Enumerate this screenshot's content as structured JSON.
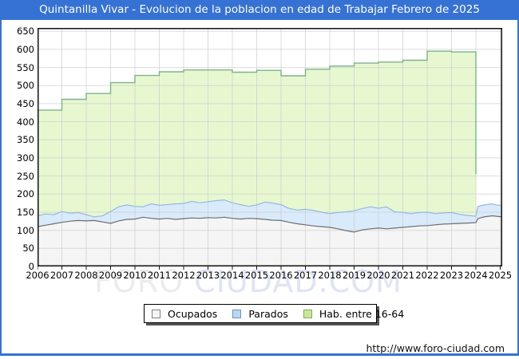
{
  "title": "Quintanilla Vivar - Evolucion de la poblacion en edad de Trabajar Febrero de 2025",
  "watermark": {
    "part1": "FORO ",
    "part2": "CIUDAD.COM"
  },
  "footer": {
    "url": "http://www.foro-ciudad.com"
  },
  "colors": {
    "titlebar_bg": "#3672d4",
    "frame": "#3672d4",
    "grid": "#c9c9c9",
    "plot_border": "#111111",
    "plot_bg": "#ffffff"
  },
  "legend": {
    "items": [
      {
        "label": "Ocupados",
        "fill": "#f5f5f5",
        "border": "#808080"
      },
      {
        "label": "Parados",
        "fill": "#b9d7f2",
        "border": "#7193b5"
      },
      {
        "label": "Hab. entre 16-64",
        "fill": "#c8e893",
        "border": "#84a85c"
      }
    ]
  },
  "chart_data": {
    "type": "area",
    "title": "Quintanilla Vivar - Evolucion de la poblacion en edad de Trabajar Febrero de 2025",
    "xlabel": "",
    "ylabel": "",
    "ylim": [
      0,
      650
    ],
    "y_tick_step": 50,
    "grid": true,
    "legend_position": "bottom",
    "x_ticks": [
      "2006",
      "2007",
      "2008",
      "2009",
      "2010",
      "2011",
      "2012",
      "2013",
      "2014",
      "2015",
      "2016",
      "2017",
      "2018",
      "2019",
      "2020",
      "2021",
      "2022",
      "2023",
      "2024",
      "2025"
    ],
    "series": [
      {
        "name": "Hab. entre 16-64",
        "mode": "annual-step",
        "years": [
          2006,
          2007,
          2008,
          2009,
          2010,
          2011,
          2012,
          2013,
          2014,
          2015,
          2016,
          2017,
          2018,
          2019,
          2020,
          2021,
          2022,
          2023
        ],
        "values": [
          432,
          462,
          478,
          508,
          528,
          538,
          543,
          543,
          537,
          542,
          527,
          545,
          554,
          562,
          565,
          570,
          595,
          593
        ],
        "end_year": 2024.0,
        "end_drop_value": 255,
        "fill": "#e7f8d1",
        "line": "#7db38a"
      },
      {
        "name": "Parados",
        "mode": "line",
        "note": "top edge of blue band = Ocupados + Parados (stacked above Ocupados)",
        "fill": "#d9eafb",
        "line": "#94badd",
        "points": [
          [
            2006,
            140
          ],
          [
            2006.33,
            145
          ],
          [
            2006.67,
            143
          ],
          [
            2007,
            152
          ],
          [
            2007.33,
            147
          ],
          [
            2007.67,
            149
          ],
          [
            2008,
            143
          ],
          [
            2008.33,
            137
          ],
          [
            2008.67,
            140
          ],
          [
            2009,
            152
          ],
          [
            2009.33,
            165
          ],
          [
            2009.67,
            170
          ],
          [
            2010,
            166
          ],
          [
            2010.33,
            165
          ],
          [
            2010.67,
            173
          ],
          [
            2011,
            169
          ],
          [
            2011.33,
            171
          ],
          [
            2011.67,
            173
          ],
          [
            2012,
            174
          ],
          [
            2012.33,
            180
          ],
          [
            2012.67,
            176
          ],
          [
            2013,
            179
          ],
          [
            2013.33,
            182
          ],
          [
            2013.67,
            184
          ],
          [
            2014,
            176
          ],
          [
            2014.33,
            171
          ],
          [
            2014.67,
            166
          ],
          [
            2015,
            170
          ],
          [
            2015.33,
            178
          ],
          [
            2015.67,
            175
          ],
          [
            2016,
            171
          ],
          [
            2016.33,
            160
          ],
          [
            2016.67,
            156
          ],
          [
            2017,
            158
          ],
          [
            2017.33,
            155
          ],
          [
            2017.67,
            150
          ],
          [
            2018,
            146
          ],
          [
            2018.33,
            149
          ],
          [
            2018.67,
            151
          ],
          [
            2019,
            154
          ],
          [
            2019.33,
            160
          ],
          [
            2019.67,
            165
          ],
          [
            2020,
            161
          ],
          [
            2020.33,
            165
          ],
          [
            2020.67,
            151
          ],
          [
            2021,
            149
          ],
          [
            2021.33,
            146
          ],
          [
            2021.67,
            149
          ],
          [
            2022,
            150
          ],
          [
            2022.33,
            146
          ],
          [
            2022.67,
            148
          ],
          [
            2023,
            149
          ],
          [
            2023.33,
            144
          ],
          [
            2023.67,
            141
          ],
          [
            2024,
            139
          ],
          [
            2024.08,
            166
          ],
          [
            2024.33,
            170
          ],
          [
            2024.67,
            173
          ],
          [
            2024.92,
            169
          ],
          [
            2025.15,
            170
          ]
        ]
      },
      {
        "name": "Ocupados",
        "mode": "line",
        "fill": "#f5f5f5",
        "line": "#6e6e6e",
        "points": [
          [
            2006,
            110
          ],
          [
            2006.33,
            114
          ],
          [
            2006.67,
            118
          ],
          [
            2007,
            122
          ],
          [
            2007.33,
            125
          ],
          [
            2007.67,
            127
          ],
          [
            2008,
            126
          ],
          [
            2008.33,
            127
          ],
          [
            2008.67,
            123
          ],
          [
            2009,
            119
          ],
          [
            2009.33,
            126
          ],
          [
            2009.67,
            130
          ],
          [
            2010,
            131
          ],
          [
            2010.33,
            136
          ],
          [
            2010.67,
            133
          ],
          [
            2011,
            131
          ],
          [
            2011.33,
            133
          ],
          [
            2011.67,
            130
          ],
          [
            2012,
            132
          ],
          [
            2012.33,
            134
          ],
          [
            2012.67,
            133
          ],
          [
            2013,
            135
          ],
          [
            2013.33,
            134
          ],
          [
            2013.67,
            136
          ],
          [
            2014,
            133
          ],
          [
            2014.33,
            131
          ],
          [
            2014.67,
            133
          ],
          [
            2015,
            132
          ],
          [
            2015.33,
            130
          ],
          [
            2015.67,
            128
          ],
          [
            2016,
            127
          ],
          [
            2016.33,
            122
          ],
          [
            2016.67,
            118
          ],
          [
            2017,
            115
          ],
          [
            2017.33,
            112
          ],
          [
            2017.67,
            110
          ],
          [
            2018,
            108
          ],
          [
            2018.33,
            104
          ],
          [
            2018.67,
            99
          ],
          [
            2019,
            95
          ],
          [
            2019.33,
            101
          ],
          [
            2019.67,
            104
          ],
          [
            2020,
            106
          ],
          [
            2020.33,
            104
          ],
          [
            2020.67,
            106
          ],
          [
            2021,
            108
          ],
          [
            2021.33,
            110
          ],
          [
            2021.67,
            112
          ],
          [
            2022,
            113
          ],
          [
            2022.33,
            115
          ],
          [
            2022.67,
            117
          ],
          [
            2023,
            118
          ],
          [
            2023.33,
            119
          ],
          [
            2023.67,
            120
          ],
          [
            2024,
            121
          ],
          [
            2024.08,
            132
          ],
          [
            2024.33,
            137
          ],
          [
            2024.67,
            140
          ],
          [
            2024.92,
            138
          ],
          [
            2025.15,
            137
          ]
        ]
      }
    ]
  }
}
